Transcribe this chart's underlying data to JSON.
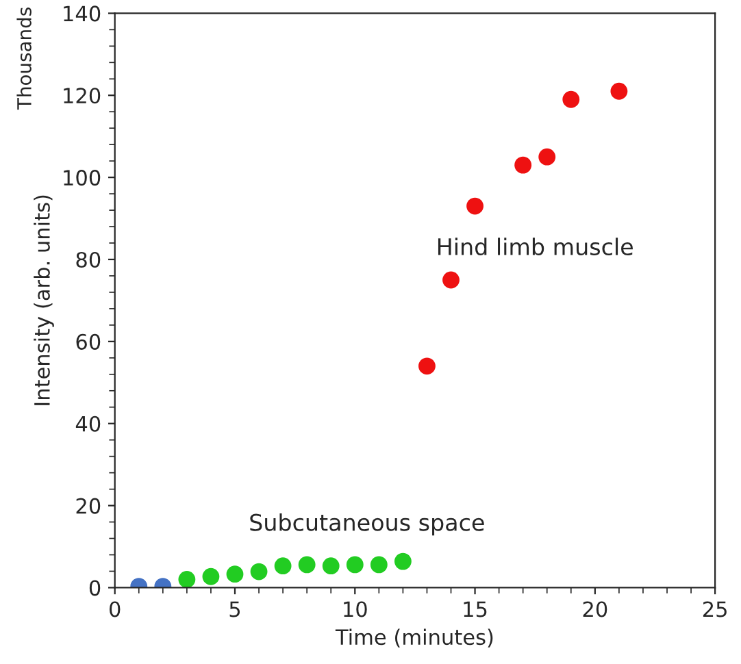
{
  "chart_data": {
    "type": "scatter",
    "xlabel": "Time (minutes)",
    "ylabel": "Intensity (arb. units)",
    "xlim": [
      0,
      25
    ],
    "xticks": [
      0,
      5,
      10,
      15,
      20,
      25
    ],
    "ylim": [
      0,
      140
    ],
    "yticks": [
      0,
      20,
      40,
      60,
      80,
      100,
      120,
      140
    ],
    "grid": false,
    "legend": false,
    "marker": "circle",
    "series": [
      {
        "color": "#4472c4",
        "x": [
          1,
          2
        ],
        "values": [
          0.3,
          0.3
        ]
      },
      {
        "color": "#22cc22",
        "x": [
          3,
          4,
          5,
          6,
          7,
          8,
          9,
          10,
          11,
          12
        ],
        "values": [
          2.0,
          2.7,
          3.3,
          3.9,
          5.3,
          5.6,
          5.3,
          5.6,
          5.6,
          6.4
        ]
      },
      {
        "color": "#ee1111",
        "x": [
          13,
          14,
          15,
          17,
          18,
          19,
          21
        ],
        "values": [
          54,
          75,
          93,
          103,
          105,
          119,
          121
        ]
      }
    ],
    "annotations": [
      "Hind limb muscle",
      "Subcutaneous space",
      "Thousands"
    ]
  }
}
